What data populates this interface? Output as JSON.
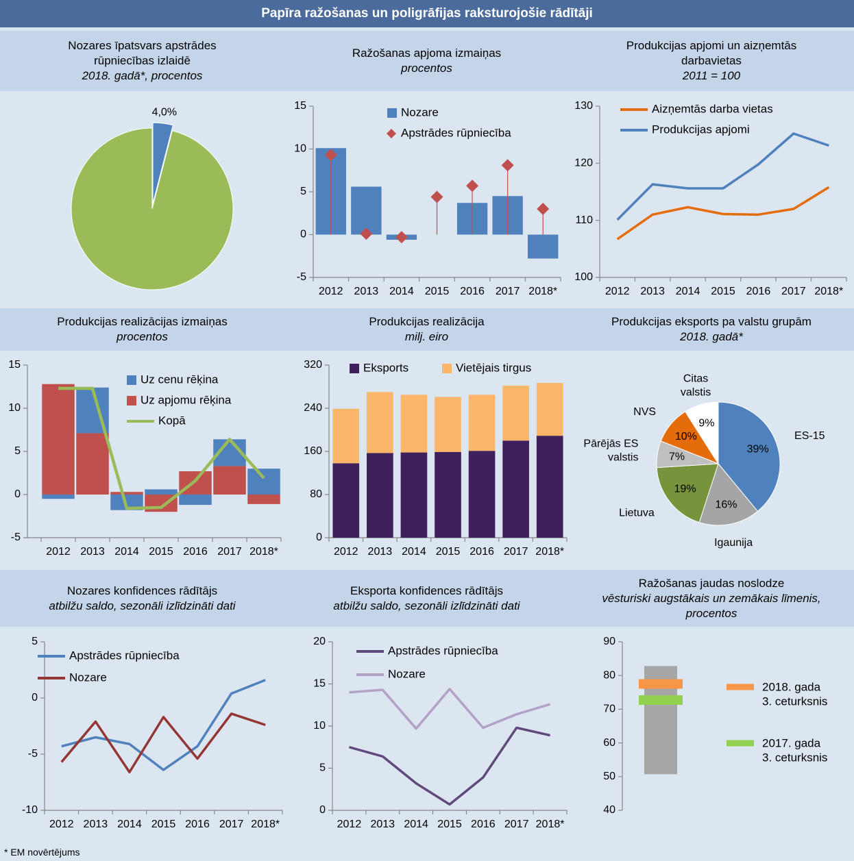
{
  "title": "Papīra ražošanas un poligrāfijas raksturojošie rādītāji",
  "footnote": "* EM novērtējums",
  "chart_data": [
    {
      "type": "pie",
      "title": "Nozares īpatsvars apstrādes rūpniecības izlaidē",
      "subtitle": "2018. gadā*, procentos",
      "values": [
        4.0,
        96.0
      ],
      "value_labels": [
        "4,0%",
        null
      ],
      "colors": [
        "#4f81bd",
        "#9bbb59"
      ],
      "explode": [
        true,
        false
      ]
    },
    {
      "type": "bar",
      "title": "Ražošanas apjoma izmaiņas",
      "subtitle": "procentos",
      "categories": [
        "2012",
        "2013",
        "2014",
        "2015",
        "2016",
        "2017",
        "2018*"
      ],
      "series": [
        {
          "name": "Nozare",
          "color": "#4f81bd",
          "values": [
            10.1,
            5.6,
            -0.6,
            0,
            3.7,
            4.5,
            -2.8
          ]
        },
        {
          "name": "Apstrādes rūpniecība",
          "color": "#c0504d",
          "marker": "diamond",
          "values": [
            9.3,
            0.1,
            -0.3,
            4.4,
            5.7,
            8.1,
            3.0
          ]
        }
      ],
      "ylim": [
        -5,
        15
      ],
      "yticks": [
        -5,
        0,
        5,
        10,
        15
      ]
    },
    {
      "type": "line",
      "title": "Produkcijas apjomi un aizņemtās darbavietas",
      "subtitle": "2011 = 100",
      "categories": [
        "2012",
        "2013",
        "2014",
        "2015",
        "2016",
        "2017",
        "2018*"
      ],
      "series": [
        {
          "name": "Aizņemtās darba vietas",
          "color": "#e46c0a",
          "values": [
            106.7,
            111.0,
            112.3,
            111.1,
            111.0,
            112.0,
            115.8
          ]
        },
        {
          "name": "Produkcijas apjomi",
          "color": "#4f81bd",
          "values": [
            110.1,
            116.3,
            115.6,
            115.6,
            119.8,
            125.2,
            123.1
          ]
        }
      ],
      "ylim": [
        100,
        130
      ],
      "yticks": [
        100,
        110,
        120,
        130
      ]
    },
    {
      "type": "bar",
      "title": "Produkcijas realizācijas izmaiņas",
      "subtitle": "procentos",
      "stacked": true,
      "stack_order": "reverse",
      "categories": [
        "2012",
        "2013",
        "2014",
        "2015",
        "2016",
        "2017",
        "2018*"
      ],
      "series": [
        {
          "name": "Uz cenu rēķina",
          "color": "#4f81bd",
          "values": [
            -0.5,
            5.3,
            -1.8,
            0.6,
            -1.2,
            3.1,
            3.0
          ]
        },
        {
          "name": "Uz apjomu rēķina",
          "color": "#c0504d",
          "values": [
            12.8,
            7.1,
            0.3,
            -2.0,
            2.7,
            3.3,
            -1.1
          ]
        },
        {
          "name": "Kopā",
          "color": "#9bbb59",
          "type": "line",
          "values": [
            12.3,
            12.3,
            -1.6,
            -1.5,
            1.6,
            6.4,
            1.9
          ]
        }
      ],
      "ylim": [
        -5,
        15
      ],
      "yticks": [
        -5,
        0,
        5,
        10,
        15
      ]
    },
    {
      "type": "bar",
      "title": "Produkcijas realizācija",
      "subtitle": "milj. eiro",
      "stacked": true,
      "categories": [
        "2012",
        "2013",
        "2014",
        "2015",
        "2016",
        "2017",
        "2018*"
      ],
      "series": [
        {
          "name": "Eksports",
          "color": "#3f1f5c",
          "values": [
            138,
            157,
            158,
            159,
            161,
            180,
            189
          ]
        },
        {
          "name": "Vietējais tirgus",
          "color": "#fbb66a",
          "values": [
            101,
            113,
            107,
            102,
            104,
            102,
            98
          ]
        }
      ],
      "ylim": [
        0,
        320
      ],
      "yticks": [
        0,
        80,
        160,
        240,
        320
      ]
    },
    {
      "type": "pie",
      "title": "Produkcijas eksports pa valstu grupām",
      "subtitle": "2018. gadā*",
      "categories": [
        "ES-15",
        "Igaunija",
        "Lietuva",
        "Pārējās ES valstis",
        "NVS",
        "Citas valstis"
      ],
      "values": [
        39,
        16,
        19,
        7,
        10,
        9
      ],
      "value_labels": [
        "39%",
        "16%",
        "19%",
        "7%",
        "10%",
        "9%"
      ],
      "colors": [
        "#4f81bd",
        "#a5a5a5",
        "#77933c",
        "#bfbfbf",
        "#e46c0a",
        "#ffffff"
      ]
    },
    {
      "type": "line",
      "title": "Nozares konfidences rādītājs",
      "subtitle": "atbilžu saldo, sezonāli izlīdzināti dati",
      "categories": [
        "2012",
        "2013",
        "2014",
        "2015",
        "2016",
        "2017",
        "2018*"
      ],
      "series": [
        {
          "name": "Apstrādes rūpniecība",
          "color": "#4f81bd",
          "values": [
            -4.3,
            -3.5,
            -4.1,
            -6.4,
            -4.3,
            0.4,
            1.6
          ]
        },
        {
          "name": "Nozare",
          "color": "#943634",
          "values": [
            -5.7,
            -2.1,
            -6.6,
            -1.7,
            -5.4,
            -1.4,
            -2.4
          ]
        }
      ],
      "ylim": [
        -10,
        5
      ],
      "yticks": [
        -10,
        -5,
        0,
        5
      ]
    },
    {
      "type": "line",
      "title": "Eksporta konfidences rādītājs",
      "subtitle": "atbilžu saldo, sezonāli izlīdzināti dati",
      "categories": [
        "2012",
        "2013",
        "2014",
        "2015",
        "2016",
        "2017",
        "2018*"
      ],
      "series": [
        {
          "name": "Apstrādes rūpniecība",
          "color": "#604a7b",
          "values": [
            7.5,
            6.4,
            3.2,
            0.7,
            3.9,
            9.8,
            8.9
          ]
        },
        {
          "name": "Nozare",
          "color": "#b3a2c7",
          "values": [
            14.0,
            14.3,
            9.7,
            14.4,
            9.8,
            11.4,
            12.6
          ]
        }
      ],
      "ylim": [
        0,
        20
      ],
      "yticks": [
        0,
        5,
        10,
        15,
        20
      ]
    },
    {
      "type": "range",
      "title": "Ražošanas jaudas noslodze",
      "subtitle": "vēsturiski augstākais un zemākais līmenis, procentos",
      "range": [
        50.7,
        82.8
      ],
      "range_color": "#a6a6a6",
      "series": [
        {
          "name": "2018. gada 3. ceturksnis",
          "color": "#f79646",
          "values": [
            77.5
          ]
        },
        {
          "name": "2017. gada 3. ceturksnis",
          "color": "#92d050",
          "values": [
            72.7
          ]
        }
      ],
      "ylim": [
        40,
        90
      ],
      "yticks": [
        40,
        50,
        60,
        70,
        80,
        90
      ]
    }
  ]
}
